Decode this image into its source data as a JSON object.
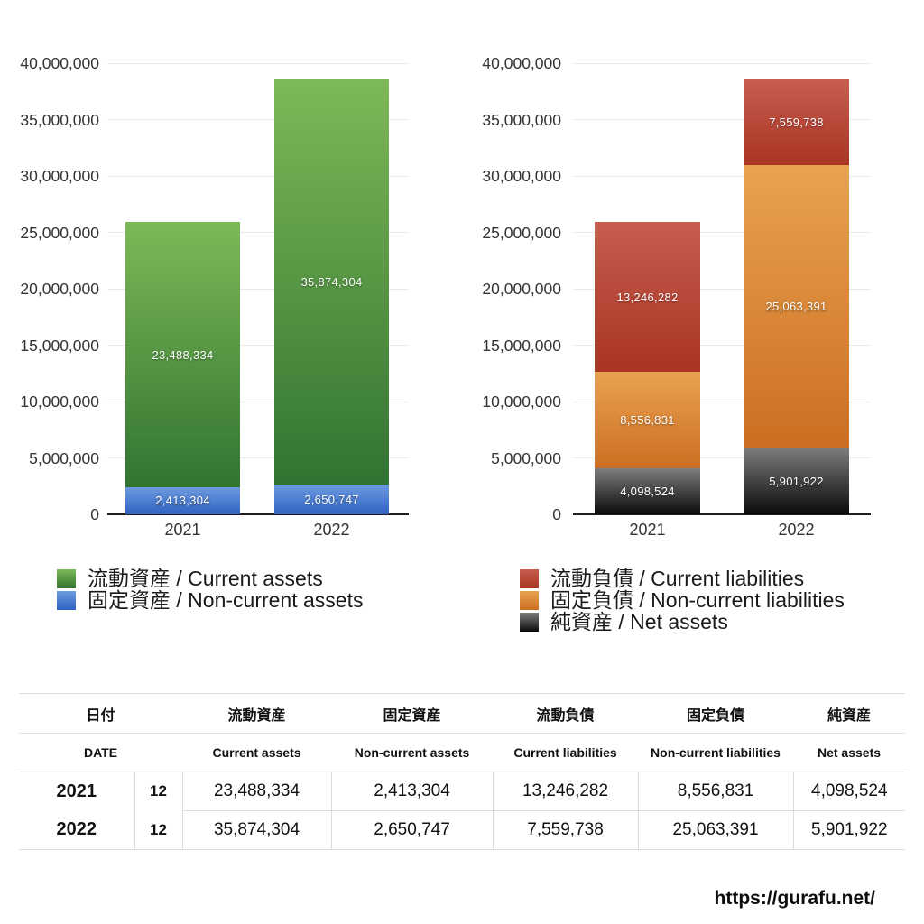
{
  "page": {
    "footer_url": "https://gurafu.net/"
  },
  "chart_data": [
    {
      "name": "assets-stacked-bar",
      "type": "bar",
      "stacked": true,
      "title": "",
      "xlabel": "",
      "ylabel": "",
      "categories": [
        "2021",
        "2022"
      ],
      "series": [
        {
          "label": "流動資産 / Current assets",
          "values": [
            23488334,
            35874304
          ],
          "stack_index": 1,
          "color_top": "#7cb957",
          "color_bottom": "#317431"
        },
        {
          "label": "固定資産 / Non-current assets",
          "values": [
            2413304,
            2650747
          ],
          "stack_index": 0,
          "color_top": "#6d9be0",
          "color_bottom": "#2f62c2"
        }
      ],
      "data_labels": [
        "23,488,334",
        "35,874,304",
        "2,413,304",
        "2,650,747"
      ],
      "ylim": [
        0,
        40000000
      ],
      "ytick_step": 5000000,
      "yticks": [
        "0",
        "5,000,000",
        "10,000,000",
        "15,000,000",
        "20,000,000",
        "25,000,000",
        "30,000,000",
        "35,000,000",
        "40,000,000"
      ],
      "grid": true,
      "legend_position": "bottom-left"
    },
    {
      "name": "liabilities-stacked-bar",
      "type": "bar",
      "stacked": true,
      "title": "",
      "xlabel": "",
      "ylabel": "",
      "categories": [
        "2021",
        "2022"
      ],
      "series": [
        {
          "label": "流動負債 / Current liabilities",
          "values": [
            13246282,
            7559738
          ],
          "stack_index": 2,
          "color_top": "#c75d4e",
          "color_bottom": "#a93424"
        },
        {
          "label": "固定負債 / Non-current liabilities",
          "values": [
            8556831,
            25063391
          ],
          "stack_index": 1,
          "color_top": "#e8a351",
          "color_bottom": "#cc6e21"
        },
        {
          "label": "純資産 / Net assets",
          "values": [
            4098524,
            5901922
          ],
          "stack_index": 0,
          "color_top": "#7d7d7d",
          "color_bottom": "#0a0a0a"
        }
      ],
      "data_labels": [
        "13,246,282",
        "7,559,738",
        "8,556,831",
        "25,063,391",
        "4,098,524",
        "5,901,922"
      ],
      "ylim": [
        0,
        40000000
      ],
      "ytick_step": 5000000,
      "yticks": [
        "0",
        "5,000,000",
        "10,000,000",
        "15,000,000",
        "20,000,000",
        "25,000,000",
        "30,000,000",
        "35,000,000",
        "40,000,000"
      ],
      "grid": true,
      "legend_position": "bottom-left"
    }
  ],
  "table": {
    "headers_ja": [
      "日付",
      "流動資産",
      "固定資産",
      "流動負債",
      "固定負債",
      "純資産"
    ],
    "headers_en": [
      "DATE",
      "Current assets",
      "Non-current assets",
      "Current liabilities",
      "Non-current liabilities",
      "Net assets"
    ],
    "rows": [
      [
        "2021",
        "12",
        "23,488,334",
        "2,413,304",
        "13,246,282",
        "8,556,831",
        "4,098,524"
      ],
      [
        "2022",
        "12",
        "35,874,304",
        "2,650,747",
        "7,559,738",
        "25,063,391",
        "5,901,922"
      ]
    ]
  }
}
